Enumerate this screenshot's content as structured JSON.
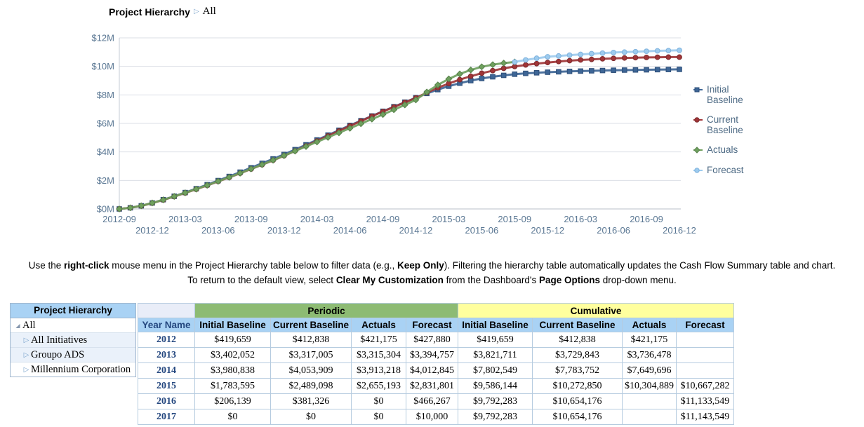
{
  "breadcrumb": {
    "title": "Project Hierarchy",
    "separator": "▷",
    "current": "All"
  },
  "colors": {
    "header_blue": "#a9d2f4",
    "periodic_green": "#8dbb73",
    "cumulative_yellow": "#ffff9e",
    "axis_text": "#5a7793",
    "gridline": "#dbdfe6",
    "legend_text": "#4d6a84",
    "year_link": "#24477f"
  },
  "chart_data": {
    "type": "line",
    "title": "",
    "unit": "USD millions",
    "ylim": [
      0,
      12
    ],
    "y_ticks": [
      "$0M",
      "$2M",
      "$4M",
      "$6M",
      "$8M",
      "$10M",
      "$12M"
    ],
    "x_tick_every_months": 3,
    "x": [
      "2012-09",
      "2012-10",
      "2012-11",
      "2012-12",
      "2013-01",
      "2013-02",
      "2013-03",
      "2013-04",
      "2013-05",
      "2013-06",
      "2013-07",
      "2013-08",
      "2013-09",
      "2013-10",
      "2013-11",
      "2013-12",
      "2014-01",
      "2014-02",
      "2014-03",
      "2014-04",
      "2014-05",
      "2014-06",
      "2014-07",
      "2014-08",
      "2014-09",
      "2014-10",
      "2014-11",
      "2014-12",
      "2015-01",
      "2015-02",
      "2015-03",
      "2015-04",
      "2015-05",
      "2015-06",
      "2015-07",
      "2015-08",
      "2015-09",
      "2015-10",
      "2015-11",
      "2015-12",
      "2016-01",
      "2016-02",
      "2016-03",
      "2016-04",
      "2016-05",
      "2016-06",
      "2016-07",
      "2016-08",
      "2016-09",
      "2016-10",
      "2016-11",
      "2016-12"
    ],
    "series": [
      {
        "name": "Initial Baseline",
        "color": "#3e6696",
        "marker_stroke": "#2e4f79",
        "marker": "square",
        "values": [
          0,
          0.08,
          0.22,
          0.42,
          0.65,
          0.89,
          1.15,
          1.42,
          1.7,
          1.99,
          2.28,
          2.58,
          2.89,
          3.2,
          3.51,
          3.82,
          4.16,
          4.5,
          4.84,
          5.18,
          5.52,
          5.86,
          6.19,
          6.52,
          6.85,
          7.17,
          7.49,
          7.8,
          8.1,
          8.37,
          8.61,
          8.82,
          9.0,
          9.15,
          9.27,
          9.37,
          9.45,
          9.51,
          9.55,
          9.59,
          9.62,
          9.65,
          9.67,
          9.69,
          9.71,
          9.73,
          9.74,
          9.75,
          9.76,
          9.77,
          9.78,
          9.79
        ]
      },
      {
        "name": "Current Baseline",
        "color": "#a03537",
        "marker_stroke": "#7c2a2d",
        "marker": "circle",
        "values": [
          0,
          0.08,
          0.21,
          0.41,
          0.63,
          0.87,
          1.12,
          1.38,
          1.65,
          1.93,
          2.21,
          2.5,
          2.8,
          3.1,
          3.41,
          3.73,
          4.07,
          4.42,
          4.77,
          5.12,
          5.47,
          5.82,
          6.16,
          6.5,
          6.83,
          7.15,
          7.47,
          7.78,
          8.16,
          8.5,
          8.8,
          9.07,
          9.31,
          9.52,
          9.7,
          9.86,
          9.99,
          10.1,
          10.19,
          10.27,
          10.34,
          10.4,
          10.45,
          10.49,
          10.53,
          10.56,
          10.59,
          10.61,
          10.63,
          10.64,
          10.65,
          10.65
        ]
      },
      {
        "name": "Actuals",
        "color": "#6fa05e",
        "marker_stroke": "#558049",
        "marker": "diamond",
        "values": [
          0,
          0.08,
          0.22,
          0.42,
          0.64,
          0.88,
          1.13,
          1.39,
          1.66,
          1.94,
          2.22,
          2.51,
          2.81,
          3.11,
          3.42,
          3.74,
          4.06,
          4.38,
          4.7,
          5.02,
          5.34,
          5.66,
          5.98,
          6.3,
          6.62,
          6.96,
          7.3,
          7.65,
          8.2,
          8.7,
          9.12,
          9.47,
          9.75,
          9.97,
          10.12,
          10.23,
          10.31,
          null,
          null,
          null,
          null,
          null,
          null,
          null,
          null,
          null,
          null,
          null,
          null,
          null,
          null,
          null
        ]
      },
      {
        "name": "Forecast",
        "color": "#9dcbee",
        "marker_stroke": "#7fb2dd",
        "marker": "circle",
        "values": [
          null,
          null,
          null,
          null,
          null,
          null,
          null,
          null,
          null,
          null,
          null,
          null,
          null,
          null,
          null,
          null,
          null,
          null,
          null,
          null,
          null,
          null,
          null,
          null,
          null,
          null,
          null,
          null,
          null,
          null,
          null,
          null,
          null,
          null,
          null,
          null,
          10.31,
          10.45,
          10.57,
          10.67,
          10.73,
          10.79,
          10.84,
          10.89,
          10.93,
          10.97,
          11.0,
          11.03,
          11.06,
          11.09,
          11.11,
          11.13
        ]
      }
    ],
    "legend_position": "right",
    "grid": "horizontal"
  },
  "instructions": {
    "lines": [
      [
        {
          "t": "Use the ",
          "b": false
        },
        {
          "t": "right-click",
          "b": true
        },
        {
          "t": " mouse menu in the Project Hierarchy table below to filter data (e.g., ",
          "b": false
        },
        {
          "t": "Keep Only",
          "b": true
        },
        {
          "t": "). Filtering the hierarchy table automatically updates the Cash Flow Summary table and chart.",
          "b": false
        }
      ],
      [
        {
          "t": "To return to the default view, select ",
          "b": false
        },
        {
          "t": "Clear My Customization",
          "b": true
        },
        {
          "t": " from the Dashboard's ",
          "b": false
        },
        {
          "t": "Page Options",
          "b": true
        },
        {
          "t": " drop-down menu.",
          "b": false
        }
      ]
    ]
  },
  "hierarchy": {
    "header": "Project Hierarchy",
    "items": [
      {
        "label": "All",
        "level": 0,
        "expanded": true,
        "shaded": false
      },
      {
        "label": "All Initiatives",
        "level": 1,
        "expanded": false,
        "shaded": true
      },
      {
        "label": "Groupo ADS",
        "level": 1,
        "expanded": false,
        "shaded": true
      },
      {
        "label": "Millennium Corporation",
        "level": 1,
        "expanded": false,
        "shaded": false
      }
    ]
  },
  "table": {
    "groups": [
      {
        "label": "",
        "span": 1,
        "kind": "empty"
      },
      {
        "label": "Periodic",
        "span": 4,
        "kind": "periodic"
      },
      {
        "label": "Cumulative",
        "span": 4,
        "kind": "cumulative"
      }
    ],
    "columns": [
      "Year Name",
      "Initial Baseline",
      "Current Baseline",
      "Actuals",
      "Forecast",
      "Initial Baseline",
      "Current Baseline",
      "Actuals",
      "Forecast"
    ],
    "rows": [
      {
        "year": "2012",
        "cells": [
          "$419,659",
          "$412,838",
          "$421,175",
          "$427,880",
          "$419,659",
          "$412,838",
          "$421,175",
          ""
        ]
      },
      {
        "year": "2013",
        "cells": [
          "$3,402,052",
          "$3,317,005",
          "$3,315,304",
          "$3,394,757",
          "$3,821,711",
          "$3,729,843",
          "$3,736,478",
          ""
        ]
      },
      {
        "year": "2014",
        "cells": [
          "$3,980,838",
          "$4,053,909",
          "$3,913,218",
          "$4,012,845",
          "$7,802,549",
          "$7,783,752",
          "$7,649,696",
          ""
        ]
      },
      {
        "year": "2015",
        "cells": [
          "$1,783,595",
          "$2,489,098",
          "$2,655,193",
          "$2,831,801",
          "$9,586,144",
          "$10,272,850",
          "$10,304,889",
          "$10,667,282"
        ]
      },
      {
        "year": "2016",
        "cells": [
          "$206,139",
          "$381,326",
          "$0",
          "$466,267",
          "$9,792,283",
          "$10,654,176",
          "",
          "$11,133,549"
        ]
      },
      {
        "year": "2017",
        "cells": [
          "$0",
          "$0",
          "$0",
          "$10,000",
          "$9,792,283",
          "$10,654,176",
          "",
          "$11,143,549"
        ]
      }
    ]
  }
}
